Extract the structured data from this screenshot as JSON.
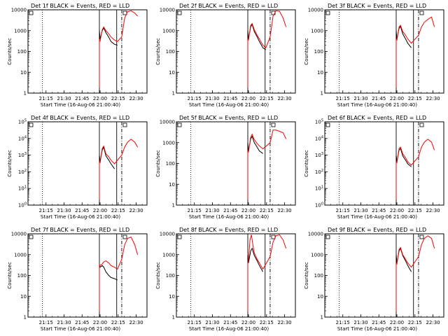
{
  "chart_data": [
    {
      "type": "line",
      "title": "Det 1f BLACK = Events, RED = LLD",
      "xlabel": "Start Time (16-Aug-06 21:00:40)",
      "ylabel": "Counts/sec",
      "yticks": [
        "1",
        "10",
        "100",
        "1000",
        "10000"
      ],
      "xticks": [
        "21:15",
        "21:30",
        "21:45",
        "22:00",
        "22:15",
        "22:30"
      ],
      "series": [
        {
          "color": "#000000",
          "points": [
            [
              21.99,
              1000
            ],
            [
              22.0,
              400
            ],
            [
              22.03,
              1000
            ],
            [
              22.05,
              1350
            ],
            [
              22.08,
              800
            ],
            [
              22.12,
              480
            ],
            [
              22.15,
              300
            ],
            [
              22.2,
              220
            ],
            [
              22.24,
              200
            ]
          ]
        },
        {
          "color": "#ff0000",
          "points": [
            [
              21.99,
              380
            ],
            [
              22.0,
              320
            ],
            [
              22.03,
              1100
            ],
            [
              22.05,
              1500
            ],
            [
              22.08,
              1000
            ],
            [
              22.12,
              700
            ],
            [
              22.15,
              500
            ],
            [
              22.2,
              350
            ],
            [
              22.24,
              300
            ],
            [
              22.3,
              500
            ],
            [
              22.34,
              4000
            ],
            [
              22.38,
              8000
            ],
            [
              22.43,
              9000
            ],
            [
              22.48,
              7000
            ],
            [
              22.52,
              5000
            ]
          ]
        }
      ]
    },
    {
      "type": "line",
      "title": "Det 2f BLACK = Events, RED = LLD",
      "xlabel": "Start Time (16-Aug-06 21:00:40)",
      "ylabel": "Counts/sec",
      "yticks": [
        "1",
        "10",
        "100",
        "1000",
        "10000"
      ],
      "xticks": [
        "21:15",
        "21:30",
        "21:45",
        "22:00",
        "22:15",
        "22:30"
      ],
      "series": [
        {
          "color": "#000000",
          "points": [
            [
              21.99,
              1000
            ],
            [
              22.0,
              400
            ],
            [
              22.03,
              1500
            ],
            [
              22.05,
              2000
            ],
            [
              22.08,
              900
            ],
            [
              22.12,
              500
            ],
            [
              22.15,
              300
            ],
            [
              22.2,
              150
            ],
            [
              22.24,
              120
            ]
          ]
        },
        {
          "color": "#ff0000",
          "points": [
            [
              21.99,
              380
            ],
            [
              22.0,
              350
            ],
            [
              22.03,
              1800
            ],
            [
              22.05,
              2200
            ],
            [
              22.08,
              1100
            ],
            [
              22.12,
              600
            ],
            [
              22.15,
              400
            ],
            [
              22.2,
              200
            ],
            [
              22.24,
              150
            ],
            [
              22.3,
              500
            ],
            [
              22.34,
              5000
            ],
            [
              22.38,
              9000
            ],
            [
              22.43,
              8500
            ],
            [
              22.48,
              4000
            ],
            [
              22.52,
              1500
            ]
          ]
        }
      ]
    },
    {
      "type": "line",
      "title": "Det 3f BLACK = Events, RED = LLD",
      "xlabel": "Start Time (16-Aug-06 21:00:40)",
      "ylabel": "Counts/sec",
      "yticks": [
        "1",
        "10",
        "100",
        "1000",
        "10000"
      ],
      "xticks": [
        "21:15",
        "21:30",
        "21:45",
        "22:00",
        "22:15",
        "22:30"
      ],
      "series": [
        {
          "color": "#000000",
          "points": [
            [
              21.99,
              1000
            ],
            [
              22.0,
              400
            ],
            [
              22.03,
              1300
            ],
            [
              22.05,
              1600
            ],
            [
              22.08,
              700
            ],
            [
              22.12,
              400
            ],
            [
              22.15,
              250
            ],
            [
              22.2,
              150
            ]
          ]
        },
        {
          "color": "#ff0000",
          "points": [
            [
              21.99,
              380
            ],
            [
              22.0,
              350
            ],
            [
              22.03,
              1500
            ],
            [
              22.05,
              1800
            ],
            [
              22.08,
              900
            ],
            [
              22.12,
              600
            ],
            [
              22.15,
              400
            ],
            [
              22.2,
              250
            ],
            [
              22.3,
              600
            ],
            [
              22.34,
              1500
            ],
            [
              22.38,
              2500
            ],
            [
              22.43,
              3500
            ],
            [
              22.48,
              4500
            ],
            [
              22.52,
              1500
            ]
          ]
        }
      ]
    },
    {
      "type": "line",
      "title": "Det 4f BLACK = Events, RED = LLD",
      "xlabel": "Start Time (16-Aug-06 21:00:40)",
      "ylabel": "Counts/sec",
      "yticks": [
        "10^0",
        "10^1",
        "10^2",
        "10^3",
        "10^4",
        "10^5"
      ],
      "xticks": [
        "21:15",
        "21:30",
        "21:45",
        "22:00",
        "22:15",
        "22:30"
      ],
      "series": [
        {
          "color": "#000000",
          "points": [
            [
              21.99,
              1000
            ],
            [
              22.0,
              400
            ],
            [
              22.03,
              2000
            ],
            [
              22.05,
              3000
            ],
            [
              22.08,
              900
            ],
            [
              22.12,
              500
            ],
            [
              22.15,
              300
            ],
            [
              22.2,
              150
            ]
          ]
        },
        {
          "color": "#ff0000",
          "points": [
            [
              21.99,
              380
            ],
            [
              22.0,
              350
            ],
            [
              22.03,
              2500
            ],
            [
              22.05,
              3500
            ],
            [
              22.08,
              1200
            ],
            [
              22.12,
              800
            ],
            [
              22.15,
              500
            ],
            [
              22.2,
              300
            ],
            [
              22.3,
              1000
            ],
            [
              22.34,
              3000
            ],
            [
              22.38,
              6000
            ],
            [
              22.43,
              9000
            ],
            [
              22.48,
              6000
            ],
            [
              22.52,
              3000
            ]
          ]
        }
      ]
    },
    {
      "type": "line",
      "title": "Det 5f BLACK = Events, RED = LLD",
      "xlabel": "Start Time (16-Aug-06 21:00:40)",
      "ylabel": "Counts/sec",
      "yticks": [
        "1",
        "10",
        "100",
        "1000",
        "10000"
      ],
      "xticks": [
        "21:15",
        "21:30",
        "21:45",
        "22:00",
        "22:15",
        "22:30"
      ],
      "series": [
        {
          "color": "#000000",
          "points": [
            [
              21.99,
              1000
            ],
            [
              22.0,
              400
            ],
            [
              22.03,
              1500
            ],
            [
              22.05,
              2000
            ],
            [
              22.08,
              1000
            ],
            [
              22.12,
              600
            ],
            [
              22.15,
              400
            ],
            [
              22.2,
              300
            ]
          ]
        },
        {
          "color": "#ff0000",
          "points": [
            [
              21.99,
              380
            ],
            [
              22.0,
              350
            ],
            [
              22.03,
              1800
            ],
            [
              22.05,
              2500
            ],
            [
              22.08,
              1400
            ],
            [
              22.12,
              900
            ],
            [
              22.15,
              700
            ],
            [
              22.2,
              500
            ],
            [
              22.3,
              1000
            ],
            [
              22.34,
              4000
            ],
            [
              22.38,
              4000
            ],
            [
              22.43,
              3500
            ],
            [
              22.48,
              3000
            ],
            [
              22.52,
              1500
            ]
          ]
        }
      ]
    },
    {
      "type": "line",
      "title": "Det 6f BLACK = Events, RED = LLD",
      "xlabel": "Start Time (16-Aug-06 21:00:40)",
      "ylabel": "Counts/sec",
      "yticks": [
        "10^0",
        "10^1",
        "10^2",
        "10^3",
        "10^4",
        "10^5"
      ],
      "xticks": [
        "21:15",
        "21:30",
        "21:45",
        "22:00",
        "22:15",
        "22:30"
      ],
      "series": [
        {
          "color": "#000000",
          "points": [
            [
              21.99,
              1000
            ],
            [
              22.0,
              400
            ],
            [
              22.03,
              2000
            ],
            [
              22.05,
              2500
            ],
            [
              22.08,
              900
            ],
            [
              22.12,
              500
            ],
            [
              22.15,
              300
            ],
            [
              22.2,
              200
            ]
          ]
        },
        {
          "color": "#ff0000",
          "points": [
            [
              21.99,
              380
            ],
            [
              22.0,
              350
            ],
            [
              22.03,
              2500
            ],
            [
              22.05,
              3000
            ],
            [
              22.08,
              1200
            ],
            [
              22.12,
              700
            ],
            [
              22.15,
              400
            ],
            [
              22.2,
              250
            ],
            [
              22.3,
              800
            ],
            [
              22.34,
              3000
            ],
            [
              22.38,
              6000
            ],
            [
              22.43,
              9000
            ],
            [
              22.48,
              6000
            ],
            [
              22.52,
              2000
            ]
          ]
        }
      ]
    },
    {
      "type": "line",
      "title": "Det 7f BLACK = Events, RED = LLD",
      "xlabel": "Start Time (16-Aug-06 21:00:40)",
      "ylabel": "Counts/sec",
      "yticks": [
        "1",
        "10",
        "100",
        "1000",
        "10000"
      ],
      "xticks": [
        "21:15",
        "21:30",
        "21:45",
        "22:00",
        "22:15",
        "22:30"
      ],
      "series": [
        {
          "color": "#000000",
          "points": [
            [
              21.99,
              300
            ],
            [
              22.0,
              250
            ],
            [
              22.03,
              300
            ],
            [
              22.05,
              250
            ],
            [
              22.08,
              150
            ],
            [
              22.12,
              100
            ],
            [
              22.15,
              80
            ],
            [
              22.2,
              70
            ],
            [
              22.24,
              60
            ]
          ]
        },
        {
          "color": "#ff0000",
          "points": [
            [
              21.99,
              330
            ],
            [
              22.0,
              300
            ],
            [
              22.03,
              350
            ],
            [
              22.05,
              450
            ],
            [
              22.08,
              500
            ],
            [
              22.12,
              400
            ],
            [
              22.15,
              300
            ],
            [
              22.2,
              250
            ],
            [
              22.24,
              200
            ],
            [
              22.3,
              600
            ],
            [
              22.34,
              3000
            ],
            [
              22.38,
              6000
            ],
            [
              22.43,
              7000
            ],
            [
              22.48,
              3000
            ],
            [
              22.52,
              1000
            ]
          ]
        }
      ]
    },
    {
      "type": "line",
      "title": "Det 8f BLACK = Events, RED = LLD",
      "xlabel": "Start Time (16-Aug-06 21:00:40)",
      "ylabel": "Counts/sec",
      "yticks": [
        "1",
        "10",
        "100",
        "1000",
        "10000"
      ],
      "xticks": [
        "21:15",
        "21:30",
        "21:45",
        "22:00",
        "22:15",
        "22:30"
      ],
      "series": [
        {
          "color": "#000000",
          "points": [
            [
              21.99,
              1000
            ],
            [
              22.0,
              400
            ],
            [
              22.03,
              1500
            ],
            [
              22.05,
              2000
            ],
            [
              22.08,
              900
            ],
            [
              22.12,
              500
            ],
            [
              22.15,
              300
            ],
            [
              22.2,
              150
            ]
          ]
        },
        {
          "color": "#ff0000",
          "points": [
            [
              21.99,
              380
            ],
            [
              22.0,
              500
            ],
            [
              22.02,
              5000
            ],
            [
              22.04,
              9000
            ],
            [
              22.06,
              3000
            ],
            [
              22.08,
              1200
            ],
            [
              22.12,
              600
            ],
            [
              22.15,
              400
            ],
            [
              22.2,
              200
            ],
            [
              22.3,
              800
            ],
            [
              22.34,
              4000
            ],
            [
              22.38,
              8000
            ],
            [
              22.43,
              9000
            ],
            [
              22.48,
              5000
            ],
            [
              22.52,
              2000
            ]
          ]
        }
      ]
    },
    {
      "type": "line",
      "title": "Det 9f BLACK = Events, RED = LLD",
      "xlabel": "Start Time (16-Aug-06 21:00:40)",
      "ylabel": "Counts/sec",
      "yticks": [
        "1",
        "10",
        "100",
        "1000",
        "10000"
      ],
      "xticks": [
        "21:15",
        "21:30",
        "21:45",
        "22:00",
        "22:15",
        "22:30"
      ],
      "series": [
        {
          "color": "#000000",
          "points": [
            [
              21.99,
              1000
            ],
            [
              22.0,
              400
            ],
            [
              22.03,
              1500
            ],
            [
              22.05,
              2000
            ],
            [
              22.08,
              900
            ],
            [
              22.12,
              500
            ],
            [
              22.15,
              300
            ],
            [
              22.2,
              150
            ]
          ]
        },
        {
          "color": "#ff0000",
          "points": [
            [
              21.99,
              380
            ],
            [
              22.0,
              350
            ],
            [
              22.03,
              1800
            ],
            [
              22.05,
              2200
            ],
            [
              22.08,
              1000
            ],
            [
              22.12,
              600
            ],
            [
              22.15,
              400
            ],
            [
              22.2,
              250
            ],
            [
              22.3,
              800
            ],
            [
              22.34,
              3000
            ],
            [
              22.38,
              6000
            ],
            [
              22.43,
              8000
            ],
            [
              22.48,
              6000
            ],
            [
              22.52,
              2000
            ]
          ]
        }
      ]
    }
  ]
}
